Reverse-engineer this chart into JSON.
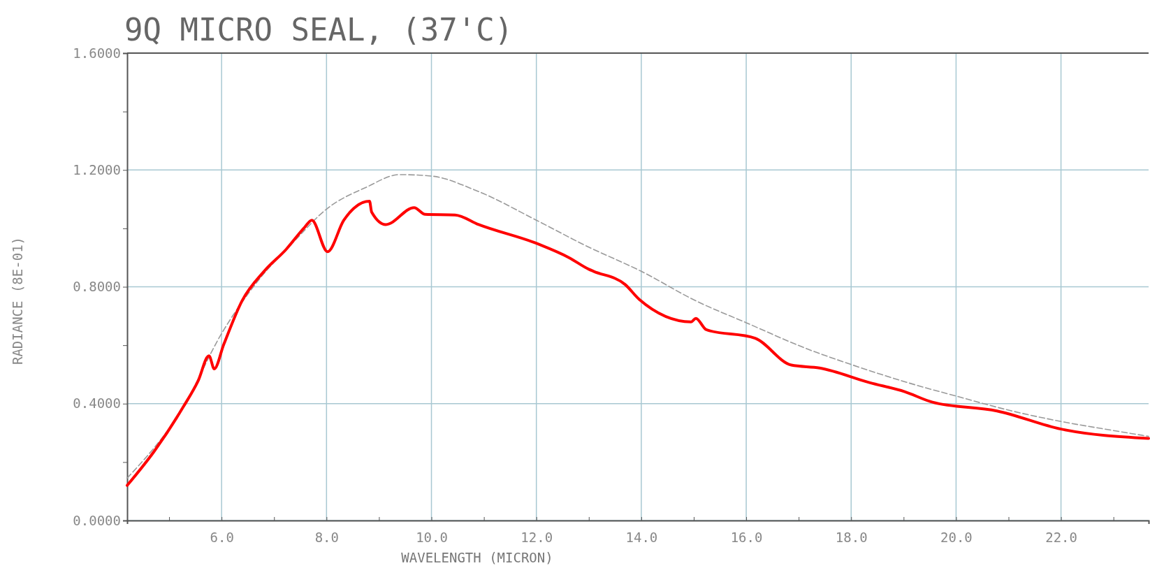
{
  "chart_data": {
    "type": "line",
    "title": "9Q MICRO SEAL, (37'C)",
    "xlabel": "WAVELENGTH (MICRON)",
    "ylabel": "RADIANCE (8E-01)",
    "xlim": [
      4.2,
      23.67
    ],
    "ylim": [
      0,
      1.6
    ],
    "xticks": [
      {
        "value": 5,
        "label": null
      },
      {
        "value": 6,
        "label": "6.0"
      },
      {
        "value": 7,
        "label": null
      },
      {
        "value": 8,
        "label": "8.0"
      },
      {
        "value": 9,
        "label": null
      },
      {
        "value": 10,
        "label": "10.0"
      },
      {
        "value": 11,
        "label": null
      },
      {
        "value": 12,
        "label": "12.0"
      },
      {
        "value": 13,
        "label": null
      },
      {
        "value": 14,
        "label": "14.0"
      },
      {
        "value": 15,
        "label": null
      },
      {
        "value": 16,
        "label": "16.0"
      },
      {
        "value": 17,
        "label": null
      },
      {
        "value": 18,
        "label": "18.0"
      },
      {
        "value": 19,
        "label": null
      },
      {
        "value": 20,
        "label": "20.0"
      },
      {
        "value": 21,
        "label": null
      },
      {
        "value": 22,
        "label": "22.0"
      },
      {
        "value": 23,
        "label": null
      }
    ],
    "yticks": [
      {
        "value": 0,
        "label": "0.0000"
      },
      {
        "value": 0.2,
        "label": null
      },
      {
        "value": 0.4,
        "label": "0.4000"
      },
      {
        "value": 0.6,
        "label": null
      },
      {
        "value": 0.8,
        "label": "0.8000"
      },
      {
        "value": 1.0,
        "label": null
      },
      {
        "value": 1.2,
        "label": "1.2000"
      },
      {
        "value": 1.4,
        "label": null
      },
      {
        "value": 1.6,
        "label": "1.6000"
      }
    ],
    "grid": true,
    "series": [
      {
        "color": "#9a9a9a",
        "line_style": "dashed",
        "x": [
          4.2,
          5.27,
          6.0,
          6.67,
          7.37,
          8.0,
          8.76,
          9.39,
          10.0,
          10.86,
          12.0,
          12.95,
          14.0,
          15.04,
          16.0,
          17.14,
          18.0,
          19.23,
          20.0,
          21.04,
          22.0,
          23.0,
          23.67
        ],
        "values": [
          0.145,
          0.389,
          0.64,
          0.815,
          0.953,
          1.066,
          1.141,
          1.184,
          1.179,
          1.129,
          1.028,
          0.94,
          0.853,
          0.752,
          0.677,
          0.589,
          0.534,
          0.464,
          0.426,
          0.376,
          0.339,
          0.308,
          0.288
        ]
      },
      {
        "color": "#ff0000",
        "line_style": "solid",
        "x": [
          4.2,
          4.72,
          5.27,
          5.55,
          5.76,
          5.86,
          6.04,
          6.39,
          6.81,
          7.23,
          7.58,
          7.72,
          8.02,
          8.33,
          8.82,
          8.86,
          9.13,
          9.67,
          9.88,
          10.45,
          10.9,
          12.04,
          12.62,
          13.0,
          13.09,
          13.69,
          13.96,
          14.95,
          15.04,
          15.24,
          16.17,
          16.86,
          17.4,
          18.35,
          19.02,
          19.55,
          20.78,
          22.0,
          23.67
        ],
        "values": [
          0.12,
          0.238,
          0.389,
          0.477,
          0.564,
          0.519,
          0.602,
          0.752,
          0.853,
          0.928,
          1.003,
          1.028,
          0.92,
          1.028,
          1.093,
          1.056,
          1.013,
          1.071,
          1.048,
          1.046,
          1.013,
          0.946,
          0.9,
          0.86,
          0.853,
          0.808,
          0.757,
          0.68,
          0.692,
          0.653,
          0.624,
          0.532,
          0.522,
          0.472,
          0.441,
          0.405,
          0.375,
          0.313,
          0.281
        ]
      }
    ]
  }
}
